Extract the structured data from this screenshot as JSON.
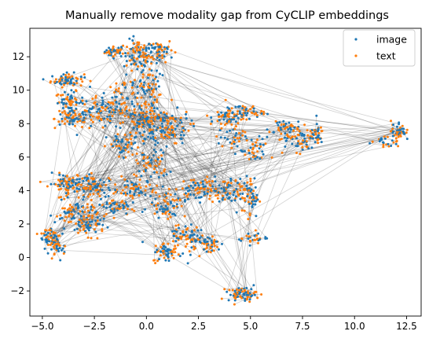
{
  "chart_data": {
    "type": "scatter",
    "title": "Manually remove modality gap from CyCLIP embeddings",
    "xlabel": "",
    "ylabel": "",
    "xlim": [
      -5.6,
      13.2
    ],
    "ylim": [
      -3.5,
      13.7
    ],
    "x_ticks": [
      -5.0,
      -2.5,
      0.0,
      2.5,
      5.0,
      7.5,
      10.0,
      12.5
    ],
    "x_tick_labels": [
      "−5.0",
      "−2.5",
      "0.0",
      "2.5",
      "5.0",
      "7.5",
      "10.0",
      "12.5"
    ],
    "y_ticks": [
      -2,
      0,
      2,
      4,
      6,
      8,
      10,
      12
    ],
    "y_tick_labels": [
      "−2",
      "0",
      "2",
      "4",
      "6",
      "8",
      "10",
      "12"
    ],
    "grid": false,
    "legend_position": "top-right",
    "connector_color": "#000000",
    "series": [
      {
        "name": "image",
        "color": "#1f77b4"
      },
      {
        "name": "text",
        "color": "#ff7f0e"
      }
    ],
    "clusters": [
      {
        "center": [
          -1.5,
          12.3
        ],
        "spread": [
          0.25,
          0.15
        ],
        "count": 20
      },
      {
        "center": [
          -0.4,
          12.1
        ],
        "spread": [
          0.35,
          0.45
        ],
        "count": 45
      },
      {
        "center": [
          0.6,
          12.4
        ],
        "spread": [
          0.35,
          0.35
        ],
        "count": 30
      },
      {
        "center": [
          -3.8,
          10.6
        ],
        "spread": [
          0.4,
          0.2
        ],
        "count": 35
      },
      {
        "center": [
          -3.7,
          9.3
        ],
        "spread": [
          0.35,
          0.3
        ],
        "count": 30
      },
      {
        "center": [
          -3.5,
          8.3
        ],
        "spread": [
          0.45,
          0.3
        ],
        "count": 35
      },
      {
        "center": [
          -2.2,
          8.6
        ],
        "spread": [
          0.5,
          0.5
        ],
        "count": 40
      },
      {
        "center": [
          -1.2,
          9.5
        ],
        "spread": [
          0.4,
          0.6
        ],
        "count": 30
      },
      {
        "center": [
          0.0,
          8.0
        ],
        "spread": [
          0.6,
          0.7
        ],
        "count": 80
      },
      {
        "center": [
          1.2,
          7.8
        ],
        "spread": [
          0.45,
          0.5
        ],
        "count": 40
      },
      {
        "center": [
          0.0,
          10.2
        ],
        "spread": [
          0.35,
          0.7
        ],
        "count": 40
      },
      {
        "center": [
          -1.1,
          6.6
        ],
        "spread": [
          0.4,
          0.4
        ],
        "count": 25
      },
      {
        "center": [
          0.3,
          5.6
        ],
        "spread": [
          0.4,
          0.5
        ],
        "count": 30
      },
      {
        "center": [
          -3.9,
          4.4
        ],
        "spread": [
          0.4,
          0.3
        ],
        "count": 35
      },
      {
        "center": [
          -2.5,
          4.2
        ],
        "spread": [
          0.6,
          0.35
        ],
        "count": 50
      },
      {
        "center": [
          -3.4,
          2.6
        ],
        "spread": [
          0.5,
          0.4
        ],
        "count": 40
      },
      {
        "center": [
          -2.8,
          1.9
        ],
        "spread": [
          0.4,
          0.3
        ],
        "count": 30
      },
      {
        "center": [
          -1.4,
          3.0
        ],
        "spread": [
          0.45,
          0.3
        ],
        "count": 30
      },
      {
        "center": [
          -0.6,
          4.1
        ],
        "spread": [
          0.4,
          0.3
        ],
        "count": 25
      },
      {
        "center": [
          1.0,
          3.2
        ],
        "spread": [
          0.45,
          0.4
        ],
        "count": 35
      },
      {
        "center": [
          2.5,
          4.1
        ],
        "spread": [
          0.6,
          0.35
        ],
        "count": 40
      },
      {
        "center": [
          4.0,
          3.9
        ],
        "spread": [
          0.5,
          0.4
        ],
        "count": 35
      },
      {
        "center": [
          5.0,
          3.6
        ],
        "spread": [
          0.2,
          0.6
        ],
        "count": 25
      },
      {
        "center": [
          5.1,
          1.2
        ],
        "spread": [
          0.35,
          0.2
        ],
        "count": 15
      },
      {
        "center": [
          -4.6,
          1.2
        ],
        "spread": [
          0.25,
          0.4
        ],
        "count": 30
      },
      {
        "center": [
          -4.2,
          0.6
        ],
        "spread": [
          0.2,
          0.3
        ],
        "count": 15
      },
      {
        "center": [
          1.0,
          0.3
        ],
        "spread": [
          0.35,
          0.3
        ],
        "count": 30
      },
      {
        "center": [
          1.7,
          1.4
        ],
        "spread": [
          0.3,
          0.4
        ],
        "count": 20
      },
      {
        "center": [
          2.3,
          1.1
        ],
        "spread": [
          0.3,
          0.35
        ],
        "count": 20
      },
      {
        "center": [
          3.0,
          0.8
        ],
        "spread": [
          0.3,
          0.3
        ],
        "count": 20
      },
      {
        "center": [
          4.6,
          -2.2
        ],
        "spread": [
          0.35,
          0.2
        ],
        "count": 35
      },
      {
        "center": [
          3.9,
          8.4
        ],
        "spread": [
          0.4,
          0.25
        ],
        "count": 25
      },
      {
        "center": [
          4.7,
          8.7
        ],
        "spread": [
          0.45,
          0.2
        ],
        "count": 25
      },
      {
        "center": [
          4.2,
          7.2
        ],
        "spread": [
          0.4,
          0.4
        ],
        "count": 20
      },
      {
        "center": [
          6.6,
          7.6
        ],
        "spread": [
          0.4,
          0.45
        ],
        "count": 30
      },
      {
        "center": [
          7.5,
          7.0
        ],
        "spread": [
          0.35,
          0.35
        ],
        "count": 20
      },
      {
        "center": [
          8.1,
          7.4
        ],
        "spread": [
          0.2,
          0.3
        ],
        "count": 20
      },
      {
        "center": [
          5.2,
          6.3
        ],
        "spread": [
          0.35,
          0.4
        ],
        "count": 20
      },
      {
        "center": [
          12.1,
          7.6
        ],
        "spread": [
          0.18,
          0.3
        ],
        "count": 25
      },
      {
        "center": [
          11.5,
          6.9
        ],
        "spread": [
          0.35,
          0.15
        ],
        "count": 12
      }
    ]
  },
  "legend": {
    "items": [
      {
        "label": "image",
        "color": "#1f77b4"
      },
      {
        "label": "text",
        "color": "#ff7f0e"
      }
    ]
  }
}
